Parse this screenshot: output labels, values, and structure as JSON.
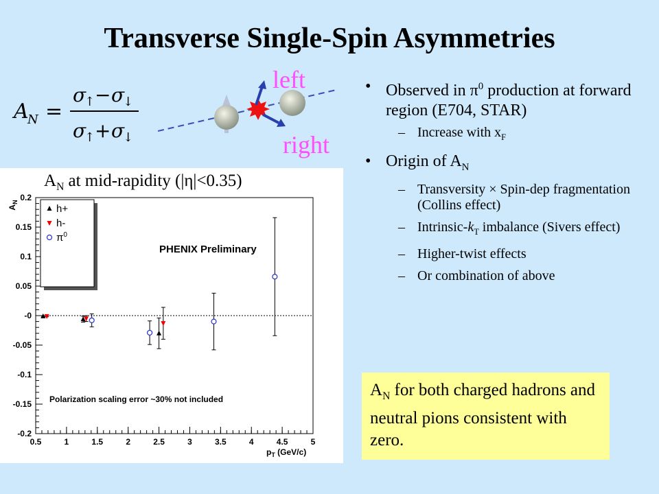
{
  "title": "Transverse Single-Spin Asymmetries",
  "diagram": {
    "left_label": "left",
    "right_label": "right"
  },
  "bullets": {
    "b1_pre": "Observed in ",
    "b1_pi": "π",
    "b1_sup": "0",
    "b1_post": " production at forward region (E704, STAR)",
    "b1a_pre": "Increase with x",
    "b1a_sub": "F",
    "b2_pre": "Origin of A",
    "b2_sub": "N",
    "b2a": "Transversity × Spin-dep fragmentation (Collins effect)",
    "b2b_pre": "Intrinsic-",
    "b2b_k": "k",
    "b2b_sub": "T",
    "b2b_post": " imbalance (Sivers effect)",
    "b2c": "Higher-twist effects",
    "b2d": "Or combination of above"
  },
  "summary": {
    "pre": "A",
    "sub": "N",
    "post": " for both charged hadrons and neutral pions consistent with zero."
  },
  "plot_title": {
    "pre": "A",
    "sub": "N",
    "post": " at mid-rapidity (|η|<0.35)"
  },
  "colors": {
    "background": "#cde9fb",
    "accent": "#ff4dff",
    "summary_bg": "#ffff99",
    "h_minus": "#ee0000",
    "pi0": "#2233cc"
  },
  "chart_data": {
    "type": "scatter",
    "ylabel": "AN",
    "xlabel": "pT (GeV/c)",
    "xlim": [
      0.5,
      5
    ],
    "ylim": [
      -0.2,
      0.2
    ],
    "x_ticks": [
      "0.5",
      "1",
      "1.5",
      "2",
      "2.5",
      "3",
      "3.5",
      "4",
      "4.5",
      "5"
    ],
    "y_ticks": [
      "-0.2",
      "-0.15",
      "-0.1",
      "-0.05",
      "-0",
      "0.05",
      "0.1",
      "0.15",
      "0.2"
    ],
    "annotation": "PHENIX Preliminary",
    "footnote": "Polarization scaling error ~30% not included",
    "legend_position": "top-left",
    "series": [
      {
        "name": "h+",
        "marker": "triangle-up",
        "color": "#000000",
        "points": [
          {
            "x": 0.62,
            "y": -0.001,
            "err": 0.001
          },
          {
            "x": 1.27,
            "y": -0.006,
            "err": 0.005
          },
          {
            "x": 2.5,
            "y": -0.03,
            "err": 0.026
          }
        ]
      },
      {
        "name": "h-",
        "marker": "triangle-down",
        "color": "#ee0000",
        "points": [
          {
            "x": 0.68,
            "y": -0.001,
            "err": 0.001
          },
          {
            "x": 1.32,
            "y": -0.005,
            "err": 0.005
          },
          {
            "x": 2.57,
            "y": -0.013,
            "err": 0.027
          }
        ]
      },
      {
        "name": "π0",
        "marker": "circle-open",
        "color": "#2233cc",
        "points": [
          {
            "x": 1.41,
            "y": -0.008,
            "err": 0.011
          },
          {
            "x": 2.35,
            "y": -0.029,
            "err": 0.02
          },
          {
            "x": 3.39,
            "y": -0.01,
            "err": 0.048
          },
          {
            "x": 4.38,
            "y": 0.066,
            "err": 0.1
          }
        ]
      }
    ]
  }
}
